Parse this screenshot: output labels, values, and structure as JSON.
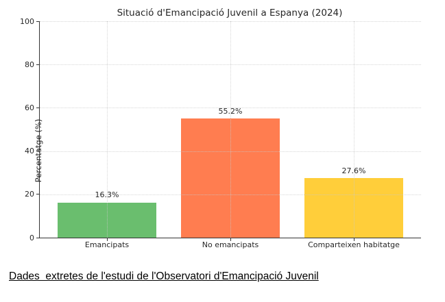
{
  "page": {
    "background_color": "#ffffff"
  },
  "caption": "Dades  extretes de l'estudi de l'Observatori d'Emancipació Juvenil",
  "chart_data": {
    "type": "bar",
    "title": "Situació d'Emancipació Juvenil a Espanya (2024)",
    "categories": [
      "Emancipats",
      "No emancipats",
      "Comparteixen habitatge"
    ],
    "values": [
      16.3,
      55.2,
      27.6
    ],
    "value_labels": [
      "16.3%",
      "55.2%",
      "27.6%"
    ],
    "bar_colors": [
      "#6abe6e",
      "#ff7d50",
      "#ffce3a"
    ],
    "xlabel": "",
    "ylabel": "Percentatge (%)",
    "ylim": [
      0,
      100
    ],
    "yticks": [
      0,
      20,
      40,
      60,
      80,
      100
    ],
    "grid": "dotted, light gray, horizontal and vertical",
    "legend_position": "none",
    "axis_color": "#333333",
    "text_color": "#262626"
  }
}
